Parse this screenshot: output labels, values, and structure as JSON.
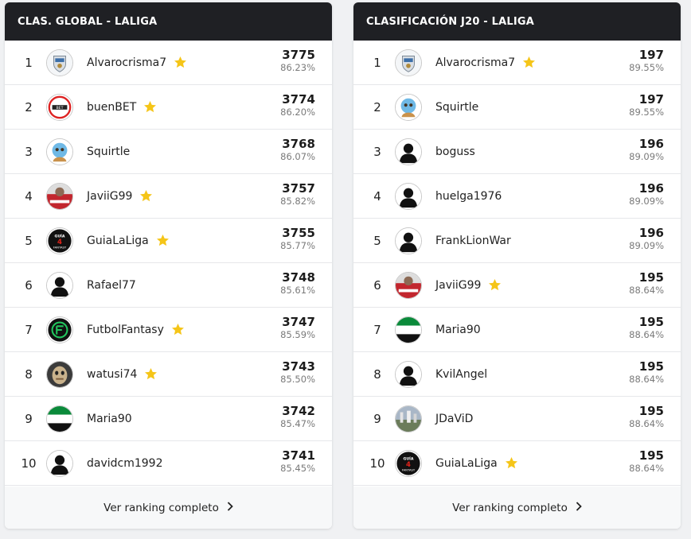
{
  "colors": {
    "header_bg": "#1f2024",
    "star": "#f5c518",
    "text": "#222222",
    "pct": "#7a7a7a"
  },
  "left_panel": {
    "title": "CLAS. GLOBAL - LALIGA",
    "footer_label": "Ver ranking completo",
    "rows": [
      {
        "pos": "1",
        "name": "Alvarocrisma7",
        "star": true,
        "avatar": "crest-avatar",
        "points": "3775",
        "pct": "86.23%"
      },
      {
        "pos": "2",
        "name": "buenBET",
        "star": true,
        "avatar": "buenbet-logo-avatar",
        "points": "3774",
        "pct": "86.20%"
      },
      {
        "pos": "3",
        "name": "Squirtle",
        "star": false,
        "avatar": "squirtle-avatar",
        "points": "3768",
        "pct": "86.07%"
      },
      {
        "pos": "4",
        "name": "JaviiG99",
        "star": true,
        "avatar": "red-photo-avatar",
        "points": "3757",
        "pct": "85.82%"
      },
      {
        "pos": "5",
        "name": "GuiaLaLiga",
        "star": true,
        "avatar": "guia-fantasy-avatar",
        "points": "3755",
        "pct": "85.77%"
      },
      {
        "pos": "6",
        "name": "Rafael77",
        "star": false,
        "avatar": "default-user-avatar",
        "points": "3748",
        "pct": "85.61%"
      },
      {
        "pos": "7",
        "name": "FutbolFantasy",
        "star": true,
        "avatar": "futbolfantasy-logo-avatar",
        "points": "3747",
        "pct": "85.59%"
      },
      {
        "pos": "8",
        "name": "watusi74",
        "star": true,
        "avatar": "mask-avatar",
        "points": "3743",
        "pct": "85.50%"
      },
      {
        "pos": "9",
        "name": "Maria90",
        "star": false,
        "avatar": "flag-avatar",
        "points": "3742",
        "pct": "85.47%"
      },
      {
        "pos": "10",
        "name": "davidcm1992",
        "star": false,
        "avatar": "default-user-avatar",
        "points": "3741",
        "pct": "85.45%"
      }
    ]
  },
  "right_panel": {
    "title": "CLASIFICACIÓN J20 - LALIGA",
    "footer_label": "Ver ranking completo",
    "rows": [
      {
        "pos": "1",
        "name": "Alvarocrisma7",
        "star": true,
        "avatar": "crest-avatar",
        "points": "197",
        "pct": "89.55%"
      },
      {
        "pos": "2",
        "name": "Squirtle",
        "star": false,
        "avatar": "squirtle-avatar",
        "points": "197",
        "pct": "89.55%"
      },
      {
        "pos": "3",
        "name": "boguss",
        "star": false,
        "avatar": "default-user-avatar",
        "points": "196",
        "pct": "89.09%"
      },
      {
        "pos": "4",
        "name": "huelga1976",
        "star": false,
        "avatar": "default-user-avatar",
        "points": "196",
        "pct": "89.09%"
      },
      {
        "pos": "5",
        "name": "FrankLionWar",
        "star": false,
        "avatar": "default-user-avatar",
        "points": "196",
        "pct": "89.09%"
      },
      {
        "pos": "6",
        "name": "JaviiG99",
        "star": true,
        "avatar": "red-photo-avatar",
        "points": "195",
        "pct": "88.64%"
      },
      {
        "pos": "7",
        "name": "Maria90",
        "star": false,
        "avatar": "flag-avatar",
        "points": "195",
        "pct": "88.64%"
      },
      {
        "pos": "8",
        "name": "KvilAngel",
        "star": false,
        "avatar": "default-user-avatar",
        "points": "195",
        "pct": "88.64%"
      },
      {
        "pos": "9",
        "name": "JDaViD",
        "star": false,
        "avatar": "stadium-photo-avatar",
        "points": "195",
        "pct": "88.64%"
      },
      {
        "pos": "10",
        "name": "GuiaLaLiga",
        "star": true,
        "avatar": "guia-fantasy-avatar",
        "points": "195",
        "pct": "88.64%"
      }
    ]
  }
}
